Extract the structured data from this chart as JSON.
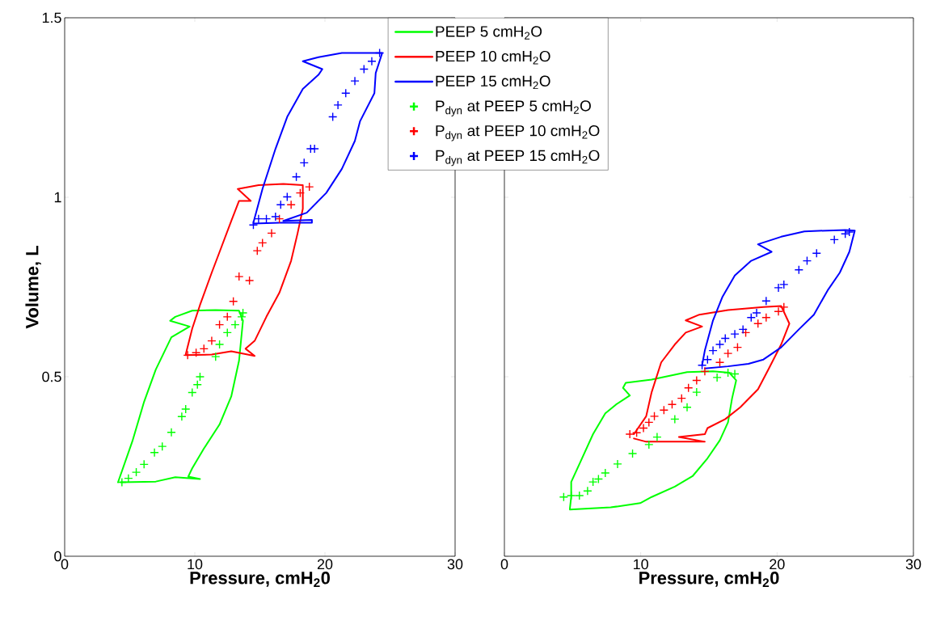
{
  "chart_data": [
    {
      "type": "line",
      "xlabel": "Pressure, cmH$_{2}$0",
      "ylabel": "Volume, L",
      "xlim": [
        0,
        30
      ],
      "ylim": [
        0,
        1.5
      ],
      "xticks": [
        0,
        10,
        20,
        30
      ],
      "yticks": [
        0,
        0.5,
        1,
        1.5
      ],
      "legend": "top right",
      "series": [
        {
          "name": "PEEP 5 cmH$_{2}$O",
          "type": "line",
          "color": "#00ff00",
          "marker": "none",
          "x": [
            4.1,
            5.2,
            6.1,
            7.0,
            8.2,
            9.6,
            8.1,
            8.5,
            9.8,
            11.6,
            13.4,
            13.7,
            13.4,
            12.8,
            11.9,
            10.7,
            9.8,
            9.5,
            10.4,
            8.5,
            7.0,
            4.3
          ],
          "values": [
            0.206,
            0.32,
            0.43,
            0.52,
            0.61,
            0.64,
            0.656,
            0.667,
            0.684,
            0.686,
            0.684,
            0.656,
            0.545,
            0.445,
            0.367,
            0.3,
            0.245,
            0.222,
            0.215,
            0.22,
            0.208,
            0.206
          ]
        },
        {
          "name": "PEEP 10 cmH$_{2}$O",
          "type": "line",
          "color": "#ff0000",
          "marker": "none",
          "x": [
            9.3,
            9.8,
            10.4,
            11.3,
            12.0,
            12.8,
            13.4,
            14.3,
            13.3,
            14.9,
            16.8,
            18.3,
            18.3,
            17.9,
            17.4,
            16.5,
            15.5,
            14.6,
            13.9,
            14.6,
            12.8,
            11.3,
            9.3
          ],
          "values": [
            0.562,
            0.634,
            0.7,
            0.79,
            0.857,
            0.934,
            0.99,
            0.99,
            1.023,
            1.034,
            1.037,
            1.034,
            0.968,
            0.9,
            0.823,
            0.734,
            0.667,
            0.6,
            0.578,
            0.558,
            0.571,
            0.562,
            0.56
          ]
        },
        {
          "name": "PEEP 15 cmH$_{2}$O",
          "type": "line",
          "color": "#0000ff",
          "marker": "none",
          "x": [
            14.5,
            15.2,
            16.2,
            17.1,
            18.3,
            19.5,
            19.8,
            18.3,
            19.5,
            21.3,
            24.4,
            23.9,
            23.8,
            22.7,
            22.3,
            21.3,
            20.1,
            18.6,
            16.8,
            19.0,
            19.0,
            16.5,
            14.5
          ],
          "values": [
            0.929,
            1.023,
            1.135,
            1.224,
            1.302,
            1.341,
            1.357,
            1.379,
            1.39,
            1.402,
            1.402,
            1.346,
            1.29,
            1.212,
            1.157,
            1.079,
            1.012,
            0.957,
            0.934,
            0.937,
            0.929,
            0.929,
            0.927
          ]
        },
        {
          "name": "P$_{dyn}$ at PEEP 5 cmH$_{2}$O",
          "type": "scatter",
          "color": "#00ff00",
          "marker": "cross",
          "x": [
            4.4,
            4.9,
            5.5,
            6.1,
            6.9,
            7.5,
            8.2,
            9.0,
            9.3,
            9.8,
            10.2,
            10.4,
            11.6,
            11.9,
            12.5,
            13.1,
            13.6,
            13.7
          ],
          "values": [
            0.206,
            0.217,
            0.234,
            0.256,
            0.289,
            0.306,
            0.345,
            0.389,
            0.41,
            0.456,
            0.478,
            0.5,
            0.556,
            0.59,
            0.623,
            0.645,
            0.667,
            0.678
          ]
        },
        {
          "name": "P$_{dyn}$ at PEEP 10 cmH$_{2}$O",
          "type": "scatter",
          "color": "#ff0000",
          "marker": "cross",
          "x": [
            9.45,
            10.1,
            10.7,
            11.3,
            11.9,
            12.5,
            12.96,
            13.4,
            14.2,
            14.8,
            15.2,
            15.9,
            16.5,
            17.4,
            18.1,
            18.8
          ],
          "values": [
            0.56,
            0.567,
            0.578,
            0.6,
            0.645,
            0.667,
            0.71,
            0.779,
            0.768,
            0.851,
            0.873,
            0.9,
            0.94,
            0.979,
            1.012,
            1.029
          ]
        },
        {
          "name": "P$_{dyn}$ at PEEP 15 cmH$_{2}$O",
          "type": "scatter",
          "color": "#0000ff",
          "marker": "cross",
          "x": [
            14.5,
            14.9,
            15.5,
            16.2,
            16.6,
            17.1,
            17.8,
            18.4,
            18.9,
            19.2,
            20.6,
            21.0,
            21.6,
            22.3,
            23.0,
            23.6,
            24.2
          ],
          "values": [
            0.923,
            0.94,
            0.94,
            0.946,
            0.979,
            1.001,
            1.057,
            1.096,
            1.135,
            1.135,
            1.224,
            1.257,
            1.29,
            1.324,
            1.357,
            1.379,
            1.402
          ]
        }
      ]
    },
    {
      "type": "line",
      "xlabel": "Pressure, cmH$_{2}$0",
      "xlim": [
        0,
        30
      ],
      "ylim": [
        0,
        1.5
      ],
      "xticks": [
        0,
        10,
        20,
        30
      ],
      "yticks": [
        0,
        0.5,
        1,
        1.5
      ],
      "tick_labels": "x",
      "series": [
        {
          "type": "line",
          "color": "#00ff00",
          "marker": "none",
          "x": [
            4.8,
            4.9,
            4.9,
            5.6,
            6.5,
            7.4,
            8.2,
            9.2,
            8.7,
            8.9,
            10.8,
            13.4,
            15.3,
            16.5,
            17.0,
            16.7,
            16.4,
            15.8,
            14.9,
            13.8,
            12.5,
            10.8,
            9.96,
            7.8,
            4.8
          ],
          "values": [
            0.132,
            0.165,
            0.207,
            0.265,
            0.34,
            0.398,
            0.423,
            0.448,
            0.469,
            0.483,
            0.492,
            0.513,
            0.515,
            0.511,
            0.49,
            0.44,
            0.373,
            0.323,
            0.273,
            0.223,
            0.194,
            0.165,
            0.148,
            0.136,
            0.13
          ]
        },
        {
          "type": "line",
          "color": "#ff0000",
          "marker": "none",
          "x": [
            9.5,
            10.4,
            10.8,
            11.5,
            12.5,
            13.3,
            14.5,
            13.3,
            14.3,
            16.4,
            19.0,
            20.3,
            20.9,
            20.3,
            19.4,
            18.6,
            17.3,
            16.2,
            14.9,
            14.7,
            12.8,
            14.7,
            10.4,
            9.5
          ],
          "values": [
            0.34,
            0.39,
            0.457,
            0.54,
            0.59,
            0.623,
            0.64,
            0.657,
            0.673,
            0.686,
            0.694,
            0.697,
            0.648,
            0.59,
            0.523,
            0.465,
            0.415,
            0.382,
            0.357,
            0.34,
            0.332,
            0.319,
            0.319,
            0.328
          ]
        },
        {
          "type": "line",
          "color": "#0000ff",
          "marker": "none",
          "x": [
            14.5,
            14.7,
            15.3,
            16.0,
            16.9,
            18.1,
            19.6,
            18.6,
            20.3,
            22.0,
            25.0,
            25.7,
            25.3,
            24.6,
            23.7,
            22.7,
            21.6,
            20.3,
            19.0,
            17.9,
            16.4,
            14.7
          ],
          "values": [
            0.532,
            0.573,
            0.657,
            0.723,
            0.782,
            0.823,
            0.848,
            0.869,
            0.89,
            0.905,
            0.909,
            0.907,
            0.848,
            0.79,
            0.74,
            0.673,
            0.632,
            0.582,
            0.548,
            0.536,
            0.529,
            0.523
          ]
        },
        {
          "type": "scatter",
          "color": "#00ff00",
          "marker": "cross",
          "x": [
            4.35,
            4.9,
            5.5,
            6.1,
            6.5,
            6.9,
            7.4,
            8.3,
            9.4,
            10.6,
            11.2,
            12.5,
            13.4,
            14.1,
            15.6,
            16.4,
            16.9
          ],
          "values": [
            0.165,
            0.169,
            0.169,
            0.182,
            0.207,
            0.215,
            0.232,
            0.257,
            0.286,
            0.311,
            0.332,
            0.382,
            0.415,
            0.457,
            0.498,
            0.511,
            0.508
          ]
        },
        {
          "type": "scatter",
          "color": "#ff0000",
          "marker": "cross",
          "x": [
            9.2,
            9.7,
            10.2,
            10.6,
            11.0,
            11.7,
            12.3,
            13.0,
            13.5,
            14.1,
            14.7,
            15.8,
            16.4,
            17.1,
            17.7,
            18.6,
            19.2,
            20.1,
            20.5
          ],
          "values": [
            0.34,
            0.344,
            0.357,
            0.373,
            0.39,
            0.407,
            0.423,
            0.44,
            0.469,
            0.49,
            0.515,
            0.54,
            0.565,
            0.582,
            0.623,
            0.648,
            0.665,
            0.682,
            0.694
          ]
        },
        {
          "type": "scatter",
          "color": "#0000ff",
          "marker": "cross",
          "x": [
            14.5,
            14.9,
            15.3,
            15.8,
            16.2,
            16.9,
            17.5,
            18.1,
            18.5,
            19.2,
            20.1,
            20.5,
            21.6,
            22.2,
            22.9,
            24.2,
            25.0,
            25.3
          ],
          "values": [
            0.532,
            0.548,
            0.573,
            0.59,
            0.607,
            0.619,
            0.632,
            0.665,
            0.678,
            0.711,
            0.748,
            0.757,
            0.798,
            0.823,
            0.844,
            0.882,
            0.898,
            0.903
          ]
        }
      ]
    }
  ]
}
